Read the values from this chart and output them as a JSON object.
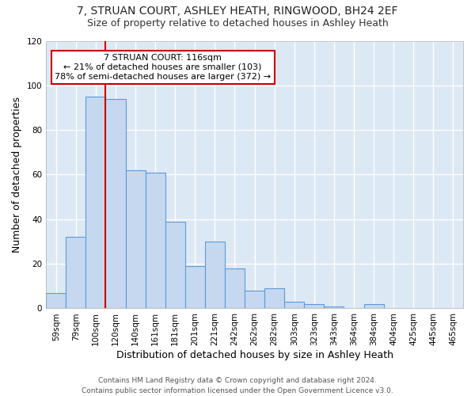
{
  "title_line1": "7, STRUAN COURT, ASHLEY HEATH, RINGWOOD, BH24 2EF",
  "title_line2": "Size of property relative to detached houses in Ashley Heath",
  "xlabel": "Distribution of detached houses by size in Ashley Heath",
  "ylabel": "Number of detached properties",
  "categories": [
    "59sqm",
    "79sqm",
    "100sqm",
    "120sqm",
    "140sqm",
    "161sqm",
    "181sqm",
    "201sqm",
    "221sqm",
    "242sqm",
    "262sqm",
    "282sqm",
    "303sqm",
    "323sqm",
    "343sqm",
    "364sqm",
    "384sqm",
    "404sqm",
    "425sqm",
    "445sqm",
    "465sqm"
  ],
  "values": [
    7,
    32,
    95,
    94,
    62,
    61,
    39,
    19,
    30,
    18,
    8,
    9,
    3,
    2,
    1,
    0,
    2,
    0,
    0,
    0,
    0
  ],
  "bar_color": "#c5d8f0",
  "bar_edge_color": "#5b9bd5",
  "background_color": "#dde8f5",
  "grid_color": "#ffffff",
  "annotation_text": "7 STRUAN COURT: 116sqm\n← 21% of detached houses are smaller (103)\n78% of semi-detached houses are larger (372) →",
  "annotation_box_color": "#ffffff",
  "annotation_box_edge_color": "#cc0000",
  "vline_x": 2.5,
  "vline_color": "#cc0000",
  "ylim": [
    0,
    120
  ],
  "yticks": [
    0,
    20,
    40,
    60,
    80,
    100,
    120
  ],
  "footer_line1": "Contains HM Land Registry data © Crown copyright and database right 2024.",
  "footer_line2": "Contains public sector information licensed under the Open Government Licence v3.0.",
  "title1_fontsize": 10,
  "title2_fontsize": 9,
  "tick_fontsize": 7.5,
  "ylabel_fontsize": 9,
  "xlabel_fontsize": 9
}
